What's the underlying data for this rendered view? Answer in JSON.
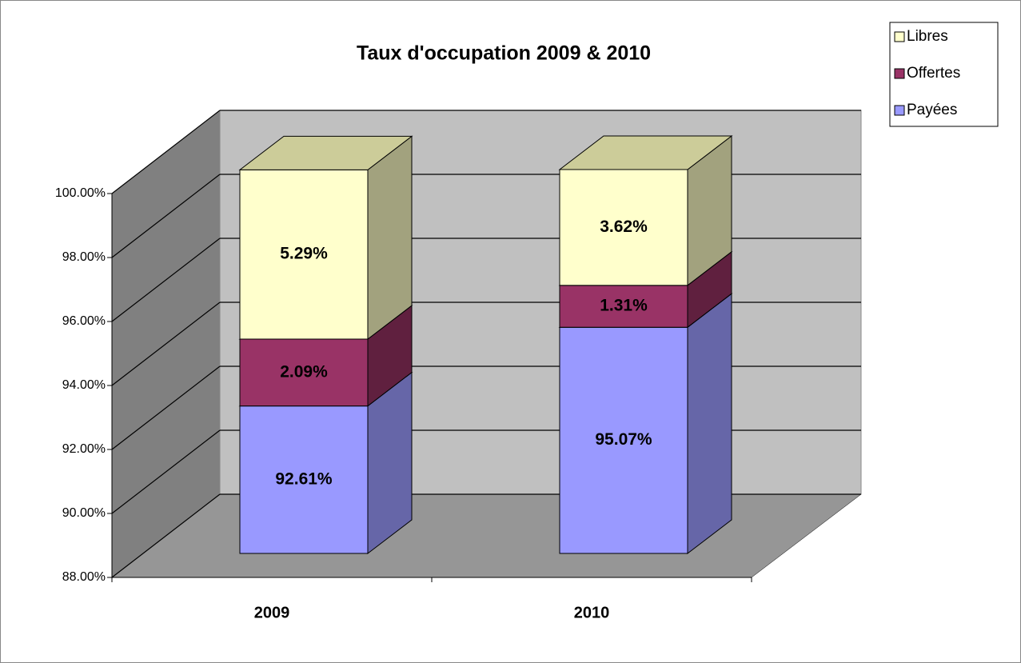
{
  "chart_data": {
    "type": "bar3d_stacked",
    "title": "Taux d'occupation 2009 & 2010",
    "categories": [
      "2009",
      "2010"
    ],
    "series": [
      {
        "name": "Payées",
        "color": "#9999ff",
        "side_color": "#6666a8",
        "values": [
          92.61,
          95.07
        ],
        "value_labels": [
          "92.61%",
          "95.07%"
        ]
      },
      {
        "name": "Offertes",
        "color": "#993366",
        "side_color": "#60203f",
        "values": [
          2.09,
          1.31
        ],
        "value_labels": [
          "2.09%",
          "1.31%"
        ]
      },
      {
        "name": "Libres",
        "color": "#ffffcc",
        "side_color": "#a2a27e",
        "values": [
          5.29,
          3.62
        ],
        "value_labels": [
          "5.29%",
          "3.62%"
        ]
      }
    ],
    "ylim": [
      88,
      100
    ],
    "yticks": [
      {
        "value": 88,
        "label": "88.00%"
      },
      {
        "value": 90,
        "label": "90.00%"
      },
      {
        "value": 92,
        "label": "92.00%"
      },
      {
        "value": 94,
        "label": "94.00%"
      },
      {
        "value": 96,
        "label": "96.00%"
      },
      {
        "value": 98,
        "label": "98.00%"
      },
      {
        "value": 100,
        "label": "100.00%"
      }
    ],
    "grid": true,
    "legend": "top-right"
  }
}
